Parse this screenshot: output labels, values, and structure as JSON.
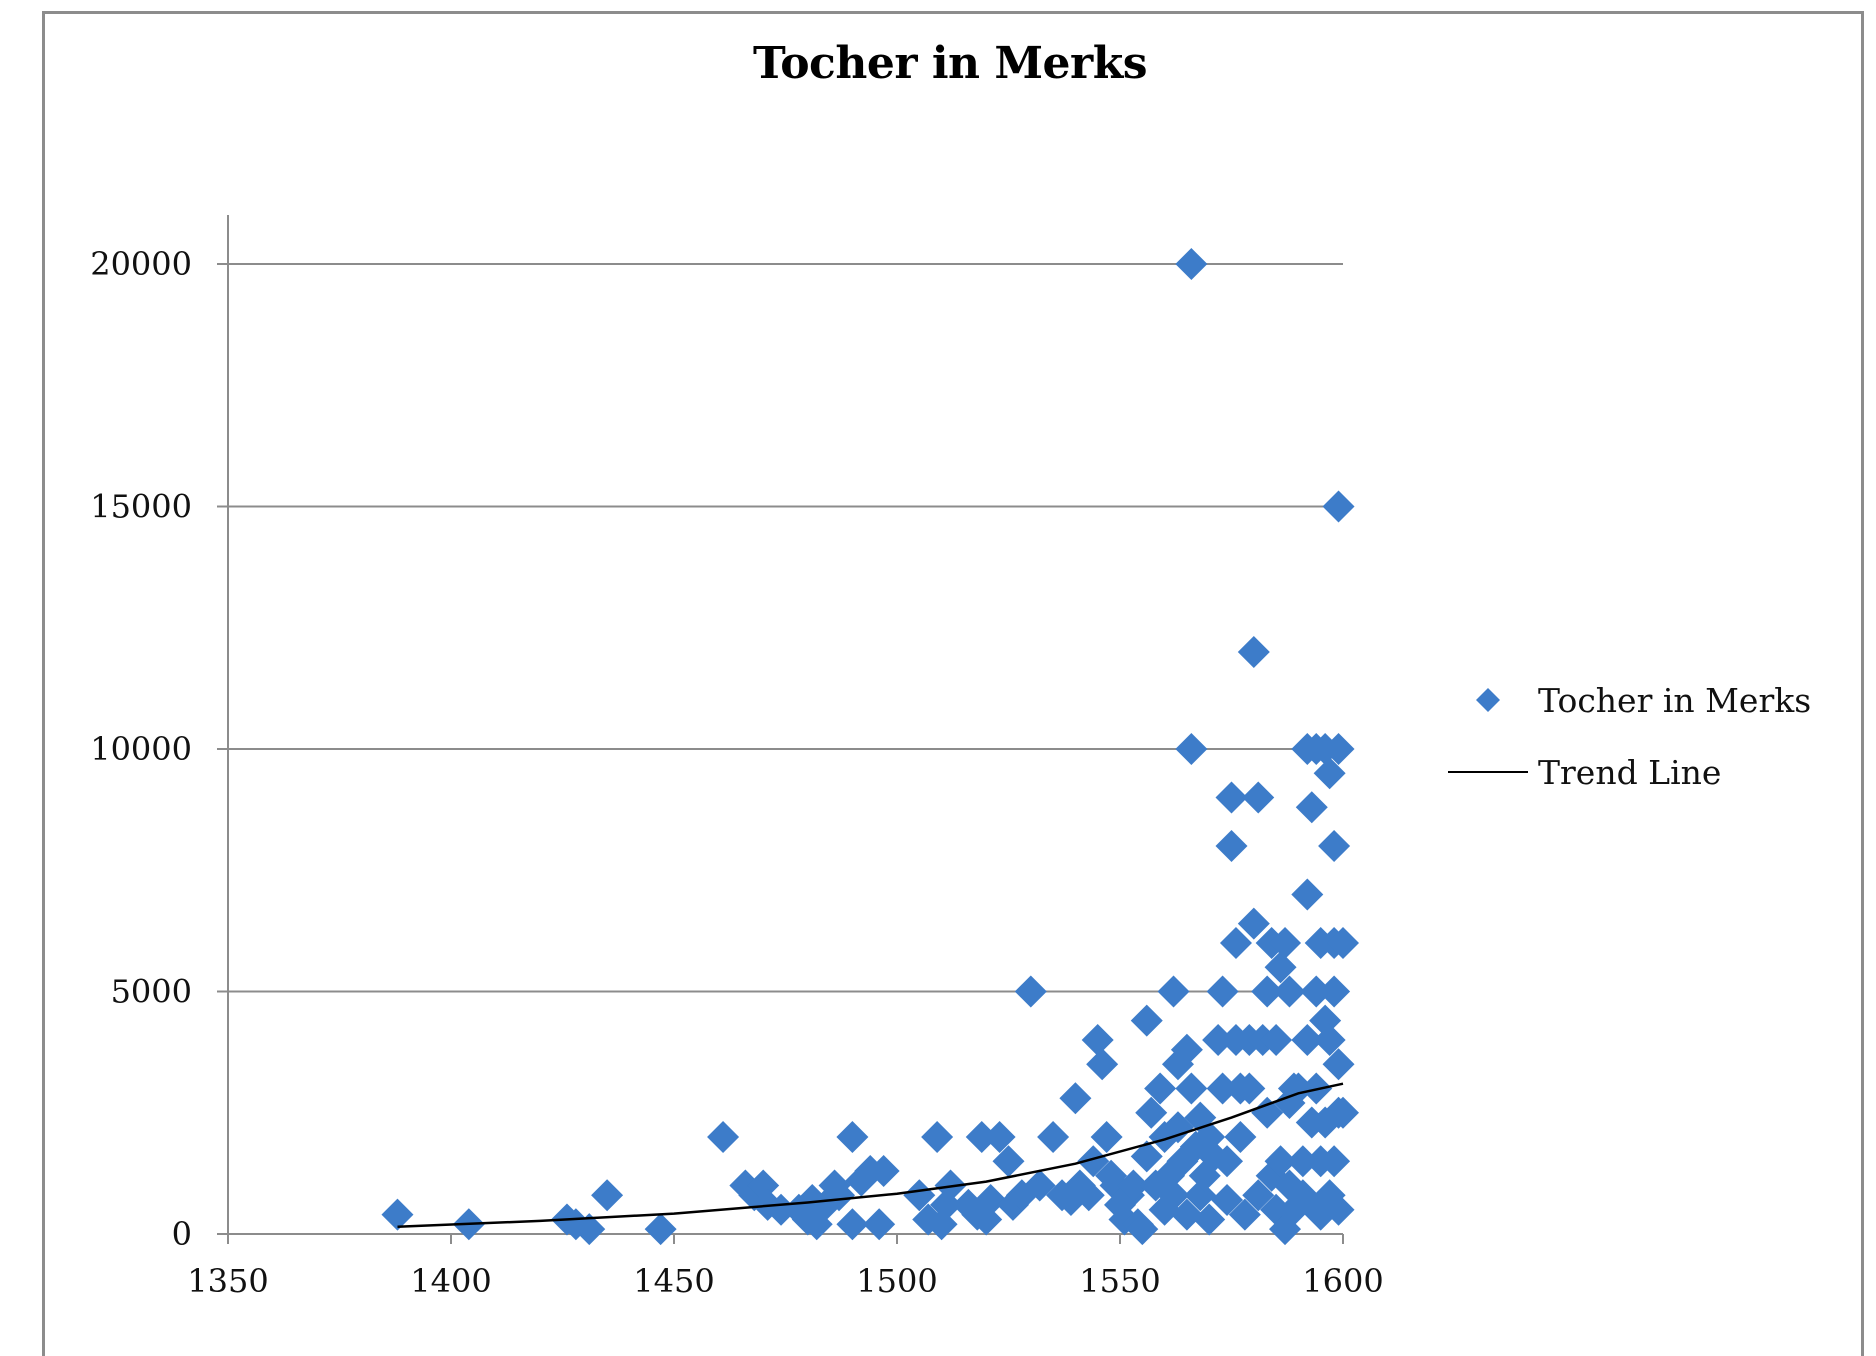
{
  "chart_data": {
    "type": "scatter",
    "title": "Tocher in Merks",
    "xlabel": "",
    "ylabel": "",
    "xlim": [
      1350,
      1600
    ],
    "ylim": [
      0,
      21000
    ],
    "x_ticks": [
      1350,
      1400,
      1450,
      1500,
      1550,
      1600
    ],
    "y_ticks": [
      0,
      5000,
      10000,
      15000,
      20000
    ],
    "grid": {
      "horizontal": true,
      "vertical": false
    },
    "legend_position": "right",
    "colors": {
      "marker": "#3d7cc9",
      "trend": "#000000",
      "grid": "#8c8c8c",
      "frame": "#8c8c8c"
    },
    "series": [
      {
        "name": "Tocher in Merks",
        "marker": "diamond",
        "points": [
          [
            1388,
            400
          ],
          [
            1404,
            200
          ],
          [
            1426,
            300
          ],
          [
            1428,
            200
          ],
          [
            1431,
            100
          ],
          [
            1435,
            800
          ],
          [
            1447,
            100
          ],
          [
            1461,
            2000
          ],
          [
            1466,
            1000
          ],
          [
            1468,
            800
          ],
          [
            1470,
            1000
          ],
          [
            1471,
            600
          ],
          [
            1474,
            500
          ],
          [
            1478,
            500
          ],
          [
            1480,
            300
          ],
          [
            1481,
            700
          ],
          [
            1482,
            200
          ],
          [
            1484,
            600
          ],
          [
            1486,
            1000
          ],
          [
            1487,
            800
          ],
          [
            1490,
            2000
          ],
          [
            1490,
            200
          ],
          [
            1492,
            1100
          ],
          [
            1494,
            1300
          ],
          [
            1496,
            200
          ],
          [
            1497,
            1300
          ],
          [
            1505,
            800
          ],
          [
            1507,
            300
          ],
          [
            1509,
            2000
          ],
          [
            1510,
            200
          ],
          [
            1511,
            600
          ],
          [
            1512,
            1000
          ],
          [
            1516,
            600
          ],
          [
            1518,
            400
          ],
          [
            1519,
            2000
          ],
          [
            1520,
            300
          ],
          [
            1521,
            700
          ],
          [
            1523,
            2000
          ],
          [
            1525,
            1500
          ],
          [
            1526,
            600
          ],
          [
            1528,
            800
          ],
          [
            1530,
            5000
          ],
          [
            1532,
            1000
          ],
          [
            1535,
            2000
          ],
          [
            1537,
            800
          ],
          [
            1539,
            700
          ],
          [
            1540,
            2800
          ],
          [
            1541,
            1000
          ],
          [
            1543,
            800
          ],
          [
            1544,
            1500
          ],
          [
            1545,
            4000
          ],
          [
            1546,
            3500
          ],
          [
            1547,
            2000
          ],
          [
            1548,
            1200
          ],
          [
            1549,
            1000
          ],
          [
            1550,
            600
          ],
          [
            1551,
            300
          ],
          [
            1552,
            800
          ],
          [
            1553,
            1000
          ],
          [
            1554,
            200
          ],
          [
            1555,
            100
          ],
          [
            1556,
            4400
          ],
          [
            1556,
            1600
          ],
          [
            1557,
            2500
          ],
          [
            1558,
            1000
          ],
          [
            1559,
            3000
          ],
          [
            1560,
            2000
          ],
          [
            1560,
            500
          ],
          [
            1561,
            1200
          ],
          [
            1562,
            5000
          ],
          [
            1562,
            800
          ],
          [
            1563,
            2200
          ],
          [
            1563,
            3500
          ],
          [
            1564,
            1500
          ],
          [
            1565,
            3800
          ],
          [
            1565,
            400
          ],
          [
            1566,
            20000
          ],
          [
            1566,
            10000
          ],
          [
            1566,
            3000
          ],
          [
            1567,
            1800
          ],
          [
            1568,
            2400
          ],
          [
            1568,
            800
          ],
          [
            1569,
            1200
          ],
          [
            1570,
            300
          ],
          [
            1570,
            2000
          ],
          [
            1571,
            1600
          ],
          [
            1572,
            4000
          ],
          [
            1573,
            5000
          ],
          [
            1573,
            3000
          ],
          [
            1574,
            1500
          ],
          [
            1574,
            700
          ],
          [
            1575,
            9000
          ],
          [
            1575,
            8000
          ],
          [
            1576,
            6000
          ],
          [
            1576,
            4000
          ],
          [
            1577,
            3000
          ],
          [
            1577,
            2000
          ],
          [
            1578,
            400
          ],
          [
            1579,
            4000
          ],
          [
            1579,
            3000
          ],
          [
            1580,
            12000
          ],
          [
            1580,
            6400
          ],
          [
            1581,
            9000
          ],
          [
            1581,
            800
          ],
          [
            1582,
            4000
          ],
          [
            1583,
            5000
          ],
          [
            1583,
            2500
          ],
          [
            1584,
            6000
          ],
          [
            1584,
            1200
          ],
          [
            1585,
            4000
          ],
          [
            1585,
            500
          ],
          [
            1586,
            5500
          ],
          [
            1586,
            1500
          ],
          [
            1587,
            6000
          ],
          [
            1587,
            100
          ],
          [
            1588,
            5000
          ],
          [
            1588,
            2700
          ],
          [
            1588,
            1000
          ],
          [
            1589,
            3000
          ],
          [
            1589,
            500
          ],
          [
            1590,
            3000
          ],
          [
            1591,
            1500
          ],
          [
            1591,
            800
          ],
          [
            1592,
            10000
          ],
          [
            1592,
            7000
          ],
          [
            1592,
            4000
          ],
          [
            1593,
            8800
          ],
          [
            1593,
            2300
          ],
          [
            1593,
            600
          ],
          [
            1594,
            10000
          ],
          [
            1594,
            5000
          ],
          [
            1594,
            3000
          ],
          [
            1595,
            6000
          ],
          [
            1595,
            1500
          ],
          [
            1595,
            400
          ],
          [
            1596,
            10000
          ],
          [
            1596,
            4400
          ],
          [
            1596,
            2300
          ],
          [
            1597,
            9500
          ],
          [
            1597,
            4000
          ],
          [
            1597,
            800
          ],
          [
            1598,
            8000
          ],
          [
            1598,
            6000
          ],
          [
            1598,
            5000
          ],
          [
            1598,
            1500
          ],
          [
            1599,
            15000
          ],
          [
            1599,
            10000
          ],
          [
            1599,
            3500
          ],
          [
            1599,
            2500
          ],
          [
            1599,
            500
          ],
          [
            1600,
            6000
          ],
          [
            1600,
            2500
          ]
        ]
      },
      {
        "name": "Trend Line",
        "type": "line",
        "points": [
          [
            1388,
            150
          ],
          [
            1420,
            270
          ],
          [
            1450,
            420
          ],
          [
            1480,
            650
          ],
          [
            1500,
            830
          ],
          [
            1520,
            1080
          ],
          [
            1540,
            1450
          ],
          [
            1560,
            1950
          ],
          [
            1575,
            2400
          ],
          [
            1590,
            2900
          ],
          [
            1600,
            3100
          ]
        ]
      }
    ]
  },
  "legend": {
    "items": [
      {
        "label": "Tocher in Merks",
        "symbol": "diamond"
      },
      {
        "label": "Trend Line",
        "symbol": "line"
      }
    ]
  }
}
